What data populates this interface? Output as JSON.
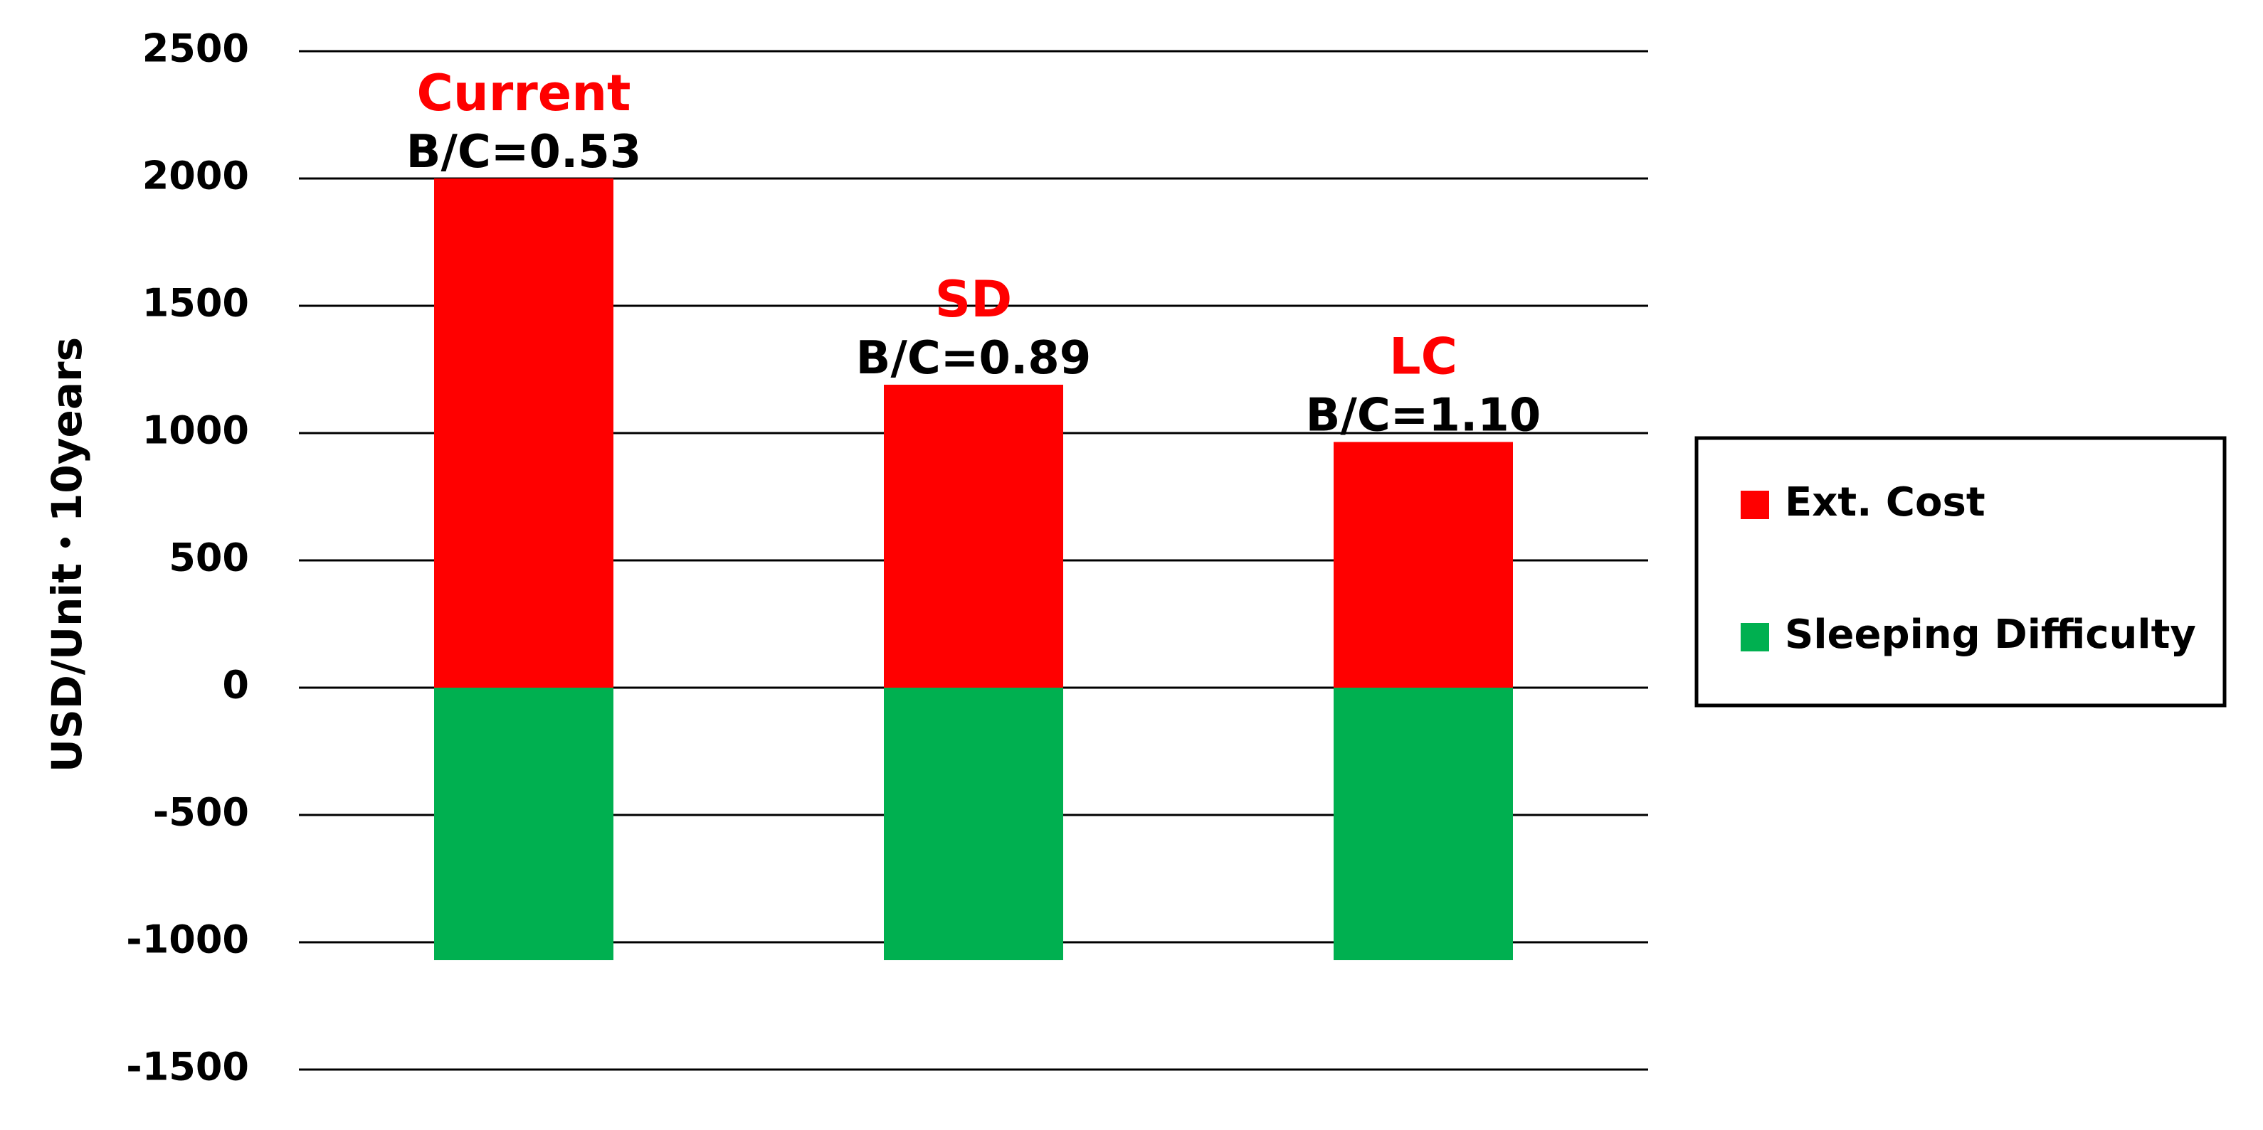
{
  "chart_data": {
    "type": "bar",
    "stacked": true,
    "categories": [
      "Current",
      "SD",
      "LC"
    ],
    "series": [
      {
        "name": "Ext. Cost",
        "color": "#ff0000",
        "values": [
          2000,
          1190,
          965
        ]
      },
      {
        "name": "Sleeping Difficulty",
        "color": "#00b050",
        "values": [
          -1070,
          -1070,
          -1070
        ]
      }
    ],
    "bc_labels": [
      "B/C=0.53",
      "B/C=0.89",
      "B/C=1.10"
    ],
    "category_label_color": "#ff0000",
    "ylabel": "USD/Unit・10years",
    "ylim": [
      -1500,
      2500
    ],
    "yticks": [
      2500,
      2000,
      1500,
      1000,
      500,
      0,
      -500,
      -1000,
      -1500
    ],
    "grid": true,
    "legend_position": "right"
  }
}
